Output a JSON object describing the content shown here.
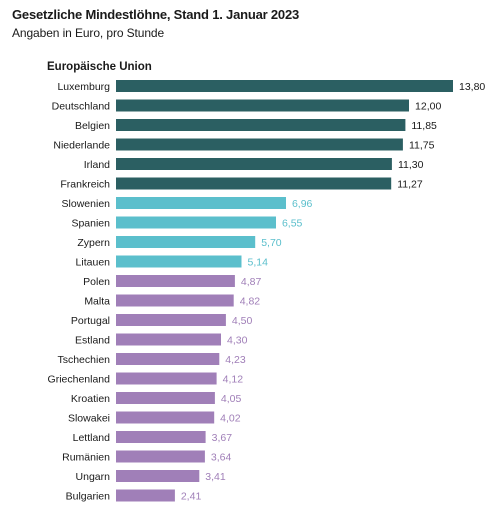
{
  "chart_data": {
    "type": "bar",
    "orientation": "horizontal",
    "title": "Gesetzliche Mindestlöhne, Stand 1. Januar 2023",
    "subtitle": "Angaben in Euro, pro Stunde",
    "group_label": "Europäische Union",
    "xlim": [
      0,
      13.8
    ],
    "grid": false,
    "legend": "none",
    "categories": [
      "Luxemburg",
      "Deutschland",
      "Belgien",
      "Niederlande",
      "Irland",
      "Frankreich",
      "Slowenien",
      "Spanien",
      "Zypern",
      "Litauen",
      "Polen",
      "Malta",
      "Portugal",
      "Estland",
      "Tschechien",
      "Griechenland",
      "Kroatien",
      "Slowakei",
      "Lettland",
      "Rumänien",
      "Ungarn",
      "Bulgarien"
    ],
    "values": [
      13.8,
      12.0,
      11.85,
      11.75,
      11.3,
      11.27,
      6.96,
      6.55,
      5.7,
      5.14,
      4.87,
      4.82,
      4.5,
      4.3,
      4.23,
      4.12,
      4.05,
      4.02,
      3.67,
      3.64,
      3.41,
      2.41
    ],
    "value_labels": [
      "13,80",
      "12,00",
      "11,85",
      "11,75",
      "11,30",
      "11,27",
      "6,96",
      "6,55",
      "5,70",
      "5,14",
      "4,87",
      "4,82",
      "4,50",
      "4,30",
      "4,23",
      "4,12",
      "4,05",
      "4,02",
      "3,67",
      "3,64",
      "3,41",
      "2,41"
    ],
    "tiers": [
      0,
      0,
      0,
      0,
      0,
      0,
      1,
      1,
      1,
      1,
      2,
      2,
      2,
      2,
      2,
      2,
      2,
      2,
      2,
      2,
      2,
      2
    ],
    "colors": {
      "tier_high": "#2b5f62",
      "tier_mid": "#5bbfcc",
      "tier_low": "#a07fb8",
      "label_high": "#1a1a1a",
      "label_mid": "#5bbfcc",
      "label_low": "#a07fb8"
    }
  }
}
